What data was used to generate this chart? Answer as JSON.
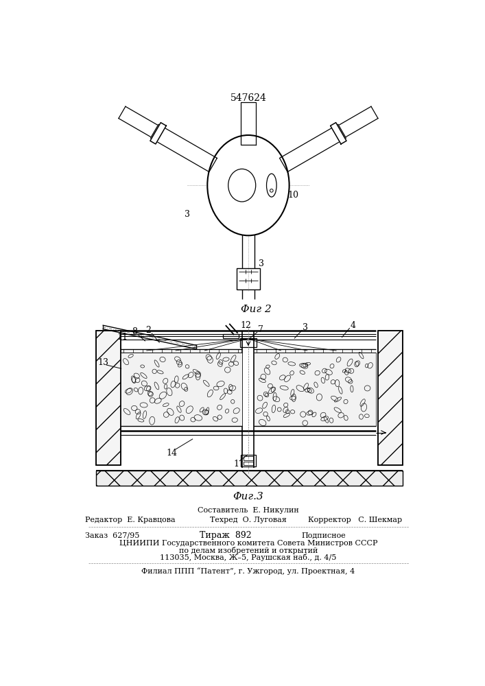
{
  "patent_number": "547624",
  "fig2_caption": "Φиг 2",
  "fig3_caption": "Φиг.3",
  "bg_color": "#ffffff",
  "line_color": "#000000",
  "text_color": "#000000",
  "footer": {
    "col1_row1": "Составитель  Е. Никулин",
    "col1_row2": "Техред  О. Луговая",
    "editor_label": "Редактор",
    "editor_name": "Е. Кравцова",
    "corrector_label": "Корректор",
    "corrector_name": "С. Шекмар",
    "order_label": "Заказ",
    "order_num": "627/95",
    "tirazh_label": "Тираж",
    "tirazh_num": "892",
    "podpisnoe": "Подписное",
    "org_line1": "ЦНИИПИ Государственного комитета Совета Министров СССР",
    "org_line2": "по делам изобретений и открытий",
    "org_line3": "113035, Москва, Ж–5, Раушская наб., д. 4/5",
    "filial": "Филиал ППП “Патент”, г. Ужгород, ул. Проектная, 4"
  }
}
